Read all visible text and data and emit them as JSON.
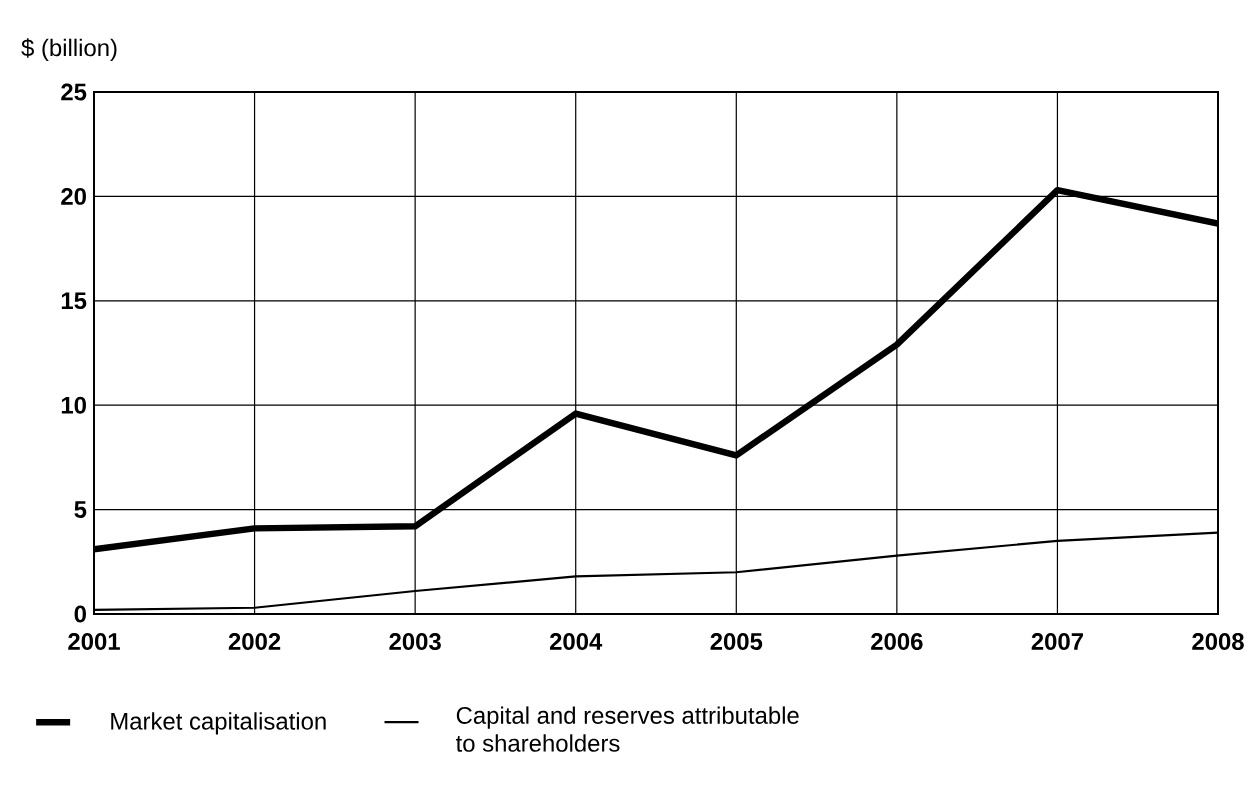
{
  "chart_data": {
    "type": "line",
    "ylabel": "$ (billion)",
    "x": [
      2001,
      2002,
      2003,
      2004,
      2005,
      2006,
      2007,
      2008
    ],
    "xlim": [
      2001,
      2008
    ],
    "xticks": [
      2001,
      2002,
      2003,
      2004,
      2005,
      2006,
      2007,
      2008
    ],
    "ylim": [
      0,
      25
    ],
    "yticks": [
      0,
      5,
      10,
      15,
      20,
      25
    ],
    "series": [
      {
        "name": "Market capitalisation",
        "color": "#000000",
        "values": [
          3.1,
          4.1,
          4.2,
          9.6,
          7.6,
          12.9,
          20.3,
          18.7
        ]
      },
      {
        "name": "Capital and reserves attributable to shareholders",
        "color": "#000000",
        "values": [
          0.2,
          0.3,
          1.1,
          1.8,
          2.0,
          2.8,
          3.5,
          3.9
        ]
      }
    ],
    "grid": true,
    "legend": "bottom",
    "marker": "none",
    "line_style": "solid"
  }
}
